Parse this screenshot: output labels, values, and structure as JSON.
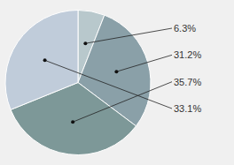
{
  "chart_data": {
    "type": "pie",
    "values": [
      6.3,
      31.2,
      35.7,
      33.1
    ],
    "value_labels": [
      "6.3%",
      "31.2%",
      "35.7%",
      "33.1%"
    ],
    "colors": [
      "#b8c8cc",
      "#8aa0a8",
      "#7d9898",
      "#c0ccda"
    ],
    "data_labels": true
  }
}
